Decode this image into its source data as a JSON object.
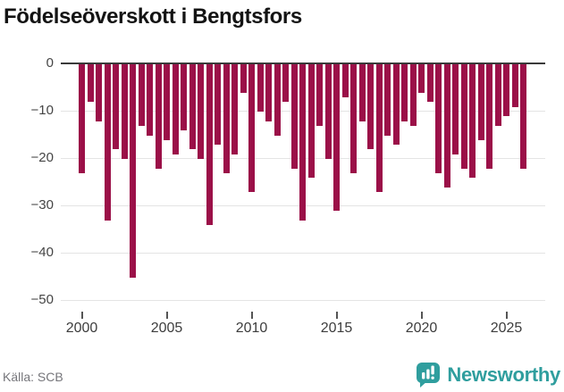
{
  "title": "Födelseöverskott i Bengtsfors",
  "source": "Källa: SCB",
  "brand": {
    "name": "Newsworthy",
    "icon": "bar-chart-speech-bubble",
    "color": "#2f9e9e"
  },
  "colors": {
    "bar": "#9b1048",
    "grid": "#e4e4e4",
    "zero_line": "#3a3a3a",
    "axis_text": "#454545",
    "source_text": "#75757a"
  },
  "chart_data": {
    "type": "bar",
    "title": "Födelseöverskott i Bengtsfors",
    "xlabel": "",
    "ylabel": "",
    "ylim": [
      -50,
      0
    ],
    "grid": true,
    "legend": false,
    "yticks": [
      0,
      -10,
      -20,
      -30,
      -40,
      -50
    ],
    "ytick_labels": [
      "0",
      "−10",
      "−20",
      "−30",
      "−40",
      "−50"
    ],
    "xticks": [
      2000,
      2005,
      2010,
      2015,
      2020,
      2025
    ],
    "xtick_labels": [
      "2000",
      "2005",
      "2010",
      "2015",
      "2020",
      "2025"
    ],
    "periods": [
      "2000-H1",
      "2000-H2",
      "2001-H1",
      "2001-H2",
      "2002-H1",
      "2002-H2",
      "2003-H1",
      "2003-H2",
      "2004-H1",
      "2004-H2",
      "2005-H1",
      "2005-H2",
      "2006-H1",
      "2006-H2",
      "2007-H1",
      "2007-H2",
      "2008-H1",
      "2008-H2",
      "2009-H1",
      "2009-H2",
      "2010-H1",
      "2010-H2",
      "2011-H1",
      "2011-H2",
      "2012-H1",
      "2012-H2",
      "2013-H1",
      "2013-H2",
      "2014-H1",
      "2014-H2",
      "2015-H1",
      "2015-H2",
      "2016-H1",
      "2016-H2",
      "2017-H1",
      "2017-H2",
      "2018-H1",
      "2018-H2",
      "2019-H1",
      "2019-H2",
      "2020-H1",
      "2020-H2",
      "2021-H1",
      "2021-H2",
      "2022-H1",
      "2022-H2",
      "2023-H1",
      "2023-H2",
      "2024-H1",
      "2024-H2",
      "2025-H1",
      "2025-H2",
      "2026-H1"
    ],
    "values": [
      -23,
      -8,
      -12,
      -33,
      -18,
      -20,
      -45,
      -13,
      -15,
      -22,
      -16,
      -19,
      -14,
      -18,
      -20,
      -34,
      -17,
      -23,
      -19,
      -6,
      -27,
      -10,
      -12,
      -15,
      -8,
      -22,
      -33,
      -24,
      -13,
      -20,
      -31,
      -7,
      -23,
      -12,
      -18,
      -27,
      -15,
      -17,
      -12,
      -13,
      -6,
      -8,
      -23,
      -26,
      -19,
      -22,
      -24,
      -16,
      -22,
      -13,
      -11,
      -9,
      -22
    ]
  }
}
